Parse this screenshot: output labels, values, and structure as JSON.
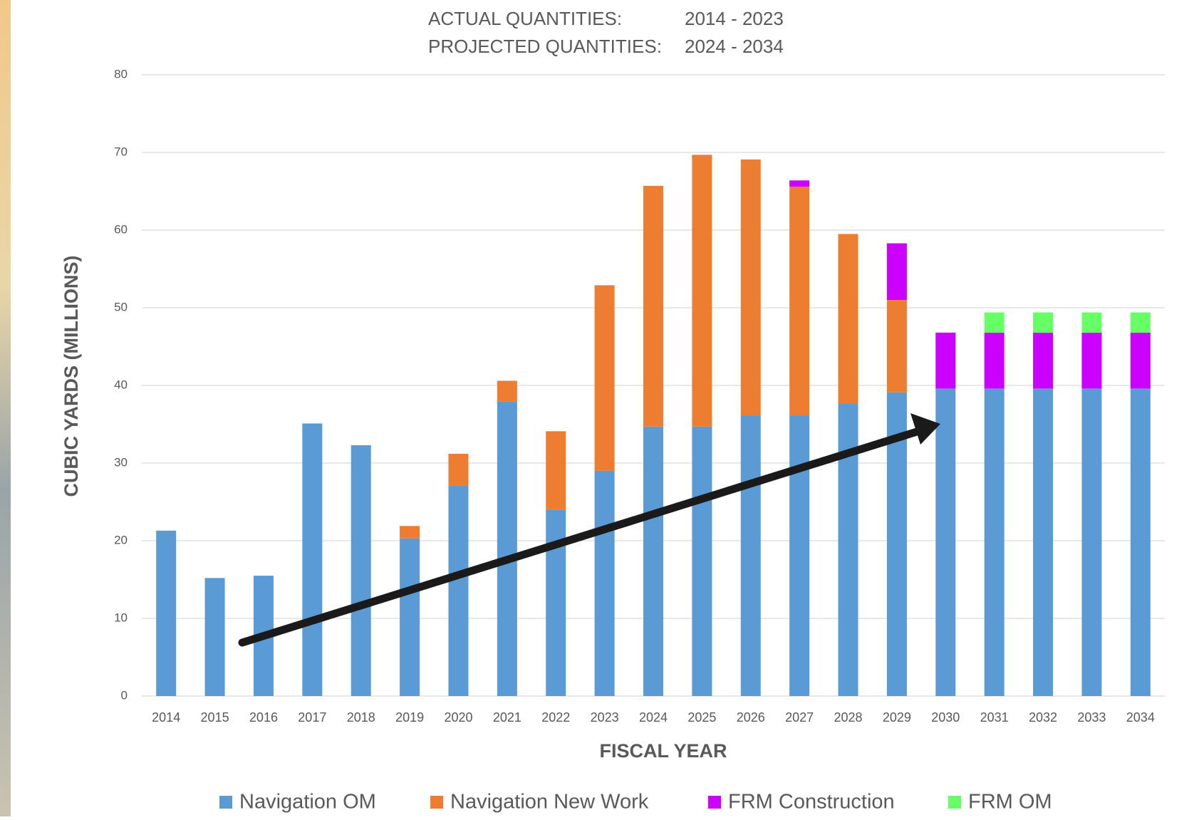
{
  "chart_data": {
    "type": "stacked-bar",
    "header": [
      {
        "label": "ACTUAL QUANTITIES:",
        "range": "2014 - 2023"
      },
      {
        "label": "PROJECTED QUANTITIES:",
        "range": "2024 - 2034"
      }
    ],
    "x_label": "FISCAL YEAR",
    "y_label": "CUBIC YARDS (MILLIONS)",
    "categories": [
      "2014",
      "2015",
      "2016",
      "2017",
      "2018",
      "2019",
      "2020",
      "2021",
      "2022",
      "2023",
      "2024",
      "2025",
      "2026",
      "2027",
      "2028",
      "2029",
      "2030",
      "2031",
      "2032",
      "2033",
      "2034"
    ],
    "series": [
      {
        "name": "Navigation OM",
        "color": "#5b9bd5",
        "values": [
          21.3,
          15.2,
          15.5,
          35.1,
          32.3,
          20.3,
          27.1,
          37.9,
          24.0,
          29.0,
          34.7,
          34.7,
          36.1,
          36.1,
          37.7,
          39.1,
          39.6,
          39.6,
          39.6,
          39.6,
          39.6
        ]
      },
      {
        "name": "Navigation New Work",
        "color": "#ed7d31",
        "values": [
          null,
          null,
          null,
          null,
          null,
          1.6,
          4.1,
          2.7,
          10.1,
          23.9,
          31.0,
          35.0,
          33.0,
          29.5,
          21.8,
          11.9,
          null,
          null,
          null,
          null,
          null
        ]
      },
      {
        "name": "FRM Construction",
        "color": "#cc00ff",
        "values": [
          null,
          null,
          null,
          null,
          null,
          null,
          null,
          null,
          null,
          null,
          null,
          null,
          null,
          0.8,
          null,
          7.3,
          7.2,
          7.2,
          7.2,
          7.2,
          7.2
        ]
      },
      {
        "name": "FRM OM",
        "color": "#66ff66",
        "values": [
          null,
          null,
          null,
          null,
          null,
          null,
          null,
          null,
          null,
          null,
          null,
          null,
          null,
          null,
          null,
          null,
          null,
          2.6,
          2.6,
          2.6,
          2.6
        ]
      }
    ],
    "ylim": [
      0,
      80
    ],
    "yticks": [
      0,
      10,
      20,
      30,
      40,
      50,
      60,
      70,
      80
    ],
    "grid": true,
    "legend": "bottom"
  }
}
